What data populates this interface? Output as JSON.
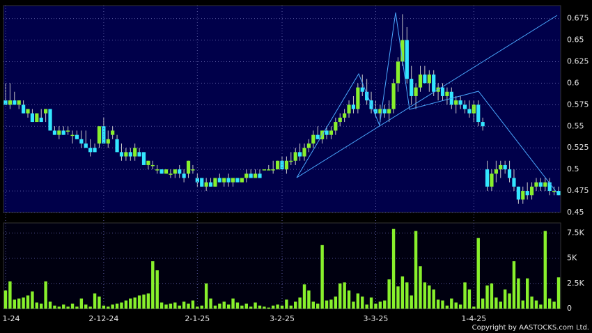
{
  "chart_data": [
    {
      "type": "candlestick",
      "up_color": "#88f02c",
      "down_color": "#33e6ff",
      "ylim": [
        0.45,
        0.69
      ],
      "yticks": [
        0.45,
        0.475,
        0.5,
        0.525,
        0.55,
        0.575,
        0.6,
        0.625,
        0.65,
        0.675
      ],
      "grid": true,
      "candles": [
        [
          0.58,
          0.6,
          0.575,
          0.575
        ],
        [
          0.575,
          0.6,
          0.57,
          0.58
        ],
        [
          0.58,
          0.59,
          0.575,
          0.575
        ],
        [
          0.575,
          0.58,
          0.57,
          0.58
        ],
        [
          0.575,
          0.58,
          0.565,
          0.565
        ],
        [
          0.565,
          0.57,
          0.56,
          0.57
        ],
        [
          0.565,
          0.57,
          0.555,
          0.555
        ],
        [
          0.555,
          0.565,
          0.555,
          0.565
        ],
        [
          0.56,
          0.57,
          0.555,
          0.555
        ],
        [
          0.565,
          0.57,
          0.555,
          0.57
        ],
        [
          0.57,
          0.57,
          0.545,
          0.545
        ],
        [
          0.545,
          0.55,
          0.54,
          0.54
        ],
        [
          0.54,
          0.55,
          0.535,
          0.545
        ],
        [
          0.545,
          0.55,
          0.54,
          0.54
        ],
        [
          0.545,
          0.55,
          0.54,
          0.545
        ],
        [
          0.54,
          0.545,
          0.53,
          0.54
        ],
        [
          0.54,
          0.545,
          0.535,
          0.535
        ],
        [
          0.535,
          0.545,
          0.525,
          0.53
        ],
        [
          0.53,
          0.545,
          0.525,
          0.525
        ],
        [
          0.525,
          0.535,
          0.515,
          0.52
        ],
        [
          0.525,
          0.53,
          0.52,
          0.52
        ],
        [
          0.53,
          0.55,
          0.525,
          0.55
        ],
        [
          0.55,
          0.56,
          0.53,
          0.53
        ],
        [
          0.53,
          0.545,
          0.525,
          0.535
        ],
        [
          0.54,
          0.55,
          0.535,
          0.545
        ],
        [
          0.535,
          0.54,
          0.52,
          0.52
        ],
        [
          0.52,
          0.53,
          0.51,
          0.515
        ],
        [
          0.515,
          0.525,
          0.51,
          0.52
        ],
        [
          0.52,
          0.525,
          0.51,
          0.515
        ],
        [
          0.515,
          0.53,
          0.51,
          0.525
        ],
        [
          0.52,
          0.525,
          0.515,
          0.515
        ],
        [
          0.52,
          0.52,
          0.505,
          0.505
        ],
        [
          0.505,
          0.51,
          0.5,
          0.51
        ],
        [
          0.505,
          0.51,
          0.5,
          0.505
        ],
        [
          0.5,
          0.505,
          0.495,
          0.5
        ],
        [
          0.5,
          0.5,
          0.495,
          0.495
        ],
        [
          0.495,
          0.5,
          0.495,
          0.5
        ],
        [
          0.495,
          0.5,
          0.49,
          0.495
        ],
        [
          0.495,
          0.5,
          0.49,
          0.5
        ],
        [
          0.5,
          0.505,
          0.49,
          0.495
        ],
        [
          0.495,
          0.5,
          0.485,
          0.49
        ],
        [
          0.495,
          0.51,
          0.49,
          0.51
        ],
        [
          0.5,
          0.505,
          0.495,
          0.5
        ],
        [
          0.49,
          0.495,
          0.48,
          0.485
        ],
        [
          0.49,
          0.49,
          0.48,
          0.48
        ],
        [
          0.48,
          0.49,
          0.475,
          0.485
        ],
        [
          0.485,
          0.49,
          0.48,
          0.48
        ],
        [
          0.48,
          0.49,
          0.48,
          0.49
        ],
        [
          0.49,
          0.495,
          0.485,
          0.485
        ],
        [
          0.485,
          0.49,
          0.48,
          0.49
        ],
        [
          0.49,
          0.495,
          0.48,
          0.485
        ],
        [
          0.485,
          0.49,
          0.48,
          0.49
        ],
        [
          0.49,
          0.49,
          0.485,
          0.485
        ],
        [
          0.485,
          0.49,
          0.485,
          0.49
        ],
        [
          0.49,
          0.5,
          0.485,
          0.495
        ],
        [
          0.495,
          0.5,
          0.49,
          0.49
        ],
        [
          0.49,
          0.5,
          0.49,
          0.495
        ],
        [
          0.495,
          0.5,
          0.49,
          0.49
        ],
        [
          0.5,
          0.5,
          0.5,
          0.5
        ],
        [
          0.5,
          0.505,
          0.5,
          0.5
        ],
        [
          0.5,
          0.51,
          0.495,
          0.5
        ],
        [
          0.5,
          0.51,
          0.5,
          0.51
        ],
        [
          0.51,
          0.515,
          0.5,
          0.5
        ],
        [
          0.5,
          0.515,
          0.495,
          0.51
        ],
        [
          0.51,
          0.52,
          0.505,
          0.51
        ],
        [
          0.51,
          0.525,
          0.505,
          0.52
        ],
        [
          0.52,
          0.53,
          0.51,
          0.515
        ],
        [
          0.515,
          0.53,
          0.51,
          0.525
        ],
        [
          0.525,
          0.535,
          0.52,
          0.53
        ],
        [
          0.53,
          0.545,
          0.525,
          0.54
        ],
        [
          0.54,
          0.55,
          0.535,
          0.535
        ],
        [
          0.535,
          0.545,
          0.53,
          0.545
        ],
        [
          0.545,
          0.55,
          0.535,
          0.54
        ],
        [
          0.54,
          0.55,
          0.535,
          0.545
        ],
        [
          0.545,
          0.56,
          0.54,
          0.555
        ],
        [
          0.555,
          0.565,
          0.55,
          0.56
        ],
        [
          0.56,
          0.57,
          0.555,
          0.565
        ],
        [
          0.565,
          0.58,
          0.56,
          0.575
        ],
        [
          0.575,
          0.585,
          0.565,
          0.57
        ],
        [
          0.57,
          0.6,
          0.565,
          0.595
        ],
        [
          0.595,
          0.61,
          0.585,
          0.59
        ],
        [
          0.59,
          0.605,
          0.575,
          0.58
        ],
        [
          0.58,
          0.59,
          0.565,
          0.57
        ],
        [
          0.57,
          0.58,
          0.56,
          0.565
        ],
        [
          0.565,
          0.575,
          0.555,
          0.57
        ],
        [
          0.57,
          0.575,
          0.56,
          0.565
        ],
        [
          0.565,
          0.58,
          0.555,
          0.57
        ],
        [
          0.57,
          0.605,
          0.565,
          0.6
        ],
        [
          0.6,
          0.63,
          0.59,
          0.625
        ],
        [
          0.625,
          0.68,
          0.62,
          0.65
        ],
        [
          0.65,
          0.665,
          0.6,
          0.605
        ],
        [
          0.605,
          0.62,
          0.575,
          0.585
        ],
        [
          0.585,
          0.6,
          0.57,
          0.595
        ],
        [
          0.595,
          0.62,
          0.59,
          0.61
        ],
        [
          0.61,
          0.62,
          0.6,
          0.6
        ],
        [
          0.6,
          0.615,
          0.59,
          0.61
        ],
        [
          0.61,
          0.615,
          0.585,
          0.59
        ],
        [
          0.59,
          0.6,
          0.58,
          0.595
        ],
        [
          0.595,
          0.6,
          0.58,
          0.585
        ],
        [
          0.585,
          0.595,
          0.575,
          0.59
        ],
        [
          0.59,
          0.595,
          0.57,
          0.575
        ],
        [
          0.575,
          0.585,
          0.565,
          0.58
        ],
        [
          0.58,
          0.585,
          0.57,
          0.575
        ],
        [
          0.575,
          0.58,
          0.565,
          0.57
        ],
        [
          0.57,
          0.58,
          0.56,
          0.565
        ],
        [
          0.565,
          0.58,
          0.555,
          0.575
        ],
        [
          0.575,
          0.58,
          0.55,
          0.555
        ],
        [
          0.555,
          0.56,
          0.545,
          0.55
        ],
        [
          0.5,
          0.51,
          0.475,
          0.48
        ],
        [
          0.48,
          0.5,
          0.475,
          0.495
        ],
        [
          0.495,
          0.51,
          0.485,
          0.5
        ],
        [
          0.5,
          0.51,
          0.49,
          0.505
        ],
        [
          0.505,
          0.51,
          0.495,
          0.5
        ],
        [
          0.5,
          0.51,
          0.485,
          0.49
        ],
        [
          0.49,
          0.5,
          0.475,
          0.48
        ],
        [
          0.48,
          0.48,
          0.46,
          0.465
        ],
        [
          0.465,
          0.48,
          0.46,
          0.475
        ],
        [
          0.475,
          0.485,
          0.465,
          0.47
        ],
        [
          0.47,
          0.485,
          0.465,
          0.48
        ],
        [
          0.48,
          0.49,
          0.475,
          0.485
        ],
        [
          0.485,
          0.49,
          0.475,
          0.48
        ],
        [
          0.48,
          0.49,
          0.475,
          0.485
        ],
        [
          0.485,
          0.49,
          0.47,
          0.475
        ],
        [
          0.475,
          0.48,
          0.47,
          0.475
        ],
        [
          0.475,
          0.48,
          0.47,
          0.47
        ]
      ]
    },
    {
      "type": "bar",
      "color": "#88f02c",
      "ylim": [
        0,
        8500
      ],
      "yticks": [
        0,
        {
          "value": 2500,
          "label": "2.5K"
        },
        {
          "value": 5000,
          "label": "5K"
        },
        {
          "value": 7500,
          "label": "7.5K"
        }
      ],
      "grid": true,
      "categories": [
        "1-24",
        null,
        null,
        null,
        null,
        null,
        null,
        null,
        null,
        null,
        null,
        null,
        null,
        null,
        null,
        null,
        null,
        null,
        null,
        null,
        null,
        null,
        "2-12-24",
        null,
        null,
        null,
        null,
        null,
        null,
        null,
        null,
        null,
        null,
        null,
        null,
        null,
        null,
        null,
        null,
        null,
        null,
        null,
        null,
        "2-1-25",
        null,
        null,
        null,
        null,
        null,
        null,
        null,
        null,
        null,
        null,
        null,
        null,
        null,
        null,
        null,
        null,
        null,
        null,
        "3-2-25",
        null,
        null,
        null,
        null,
        null,
        null,
        null,
        null,
        null,
        null,
        null,
        null,
        null,
        null,
        null,
        null,
        null,
        null,
        null,
        null,
        "3-3-25",
        null,
        null,
        null,
        null,
        null,
        null,
        null,
        null,
        null,
        null,
        null,
        null,
        null,
        null,
        null,
        null,
        null,
        null,
        null,
        null,
        null,
        "1-4-25",
        null,
        null,
        null,
        null,
        null,
        null,
        null,
        null,
        null,
        null,
        null,
        null,
        null,
        null,
        null,
        null,
        null,
        null,
        null
      ],
      "values": [
        1800,
        2700,
        900,
        1000,
        1100,
        1300,
        1700,
        600,
        500,
        2700,
        700,
        300,
        200,
        400,
        200,
        500,
        200,
        1000,
        400,
        200,
        1500,
        1200,
        300,
        200,
        400,
        500,
        600,
        800,
        1000,
        1100,
        1300,
        1400,
        1500,
        4700,
        3800,
        600,
        400,
        500,
        600,
        300,
        700,
        500,
        800,
        200,
        300,
        2500,
        1000,
        300,
        500,
        700,
        400,
        1000,
        600,
        300,
        500,
        200,
        600,
        300,
        200,
        100,
        300,
        400,
        300,
        900,
        300,
        700,
        1100,
        2400,
        1800,
        700,
        500,
        6300,
        800,
        900,
        1200,
        2500,
        2600,
        1800,
        700,
        1500,
        1200,
        400,
        1100,
        500,
        700,
        800,
        2900,
        7900,
        2200,
        3200,
        2600,
        1300,
        7700,
        4200,
        2600,
        2300,
        1900,
        900,
        800,
        300,
        1000,
        600,
        400,
        2600,
        1900,
        200,
        7000,
        1000,
        2300,
        2500,
        1100,
        700,
        1900,
        1500,
        4700,
        3000,
        800,
        3000,
        1200,
        800,
        400,
        7700,
        1000,
        700,
        3100
      ]
    }
  ],
  "footer": "Copyright by AASTOCKS.com Ltd."
}
